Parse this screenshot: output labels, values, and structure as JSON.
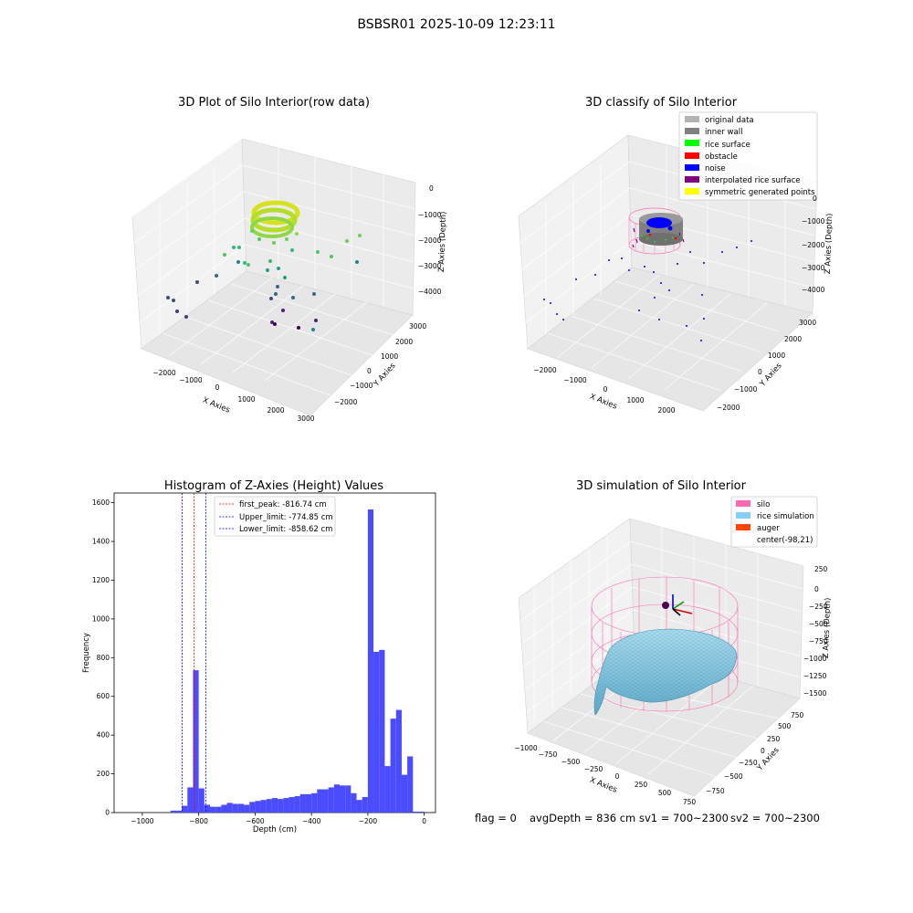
{
  "figure": {
    "suptitle": "BSBSR01 2025-10-09 12:23:11",
    "footer": {
      "flag": "flag = 0",
      "avg_depth": "avgDepth = 836 cm",
      "sv1": "sv1 = 700~2300",
      "sv2": "sv2 = 700~2300"
    }
  },
  "colors": {
    "histogram_bar": "#4b4bff",
    "first_peak_line": "#ff0000",
    "limit_lines": "#0000ff",
    "silo_wire": "#ff69b4",
    "rice_simulation": "#87cefa",
    "auger": "#ff4500",
    "original_data": "#b3b3b3",
    "inner_wall": "#808080",
    "rice_surface": "#00ff00",
    "obstacle": "#ff0000",
    "noise": "#0000ff",
    "interpolated_rice_surface": "#800080",
    "symmetric_generated_points": "#ffff00"
  },
  "chart_data": [
    {
      "type": "scatter",
      "title": "3D Plot of Silo Interior(row data)",
      "xlabel": "X Axies",
      "ylabel": "Y Axies",
      "zlabel": "Z Axies (Depth)",
      "x_ticks": [
        "−2000",
        "−1000",
        "0",
        "1000",
        "2000",
        "3000"
      ],
      "y_ticks": [
        "−2000",
        "−1000",
        "0",
        "1000",
        "2000",
        "3000"
      ],
      "z_ticks": [
        "0",
        "−1000",
        "−2000",
        "−3000",
        "−4000"
      ],
      "xlim": [
        -2500,
        3000
      ],
      "ylim": [
        -2500,
        3500
      ],
      "zlim": [
        -4500,
        0
      ],
      "colormap": "viridis",
      "grid": true
    },
    {
      "type": "scatter",
      "title": "3D classify of Silo Interior",
      "xlabel": "X Axies",
      "ylabel": "Y Axies",
      "zlabel": "Z Axies (Depth)",
      "x_ticks": [
        "−2000",
        "−1000",
        "0",
        "1000",
        "2000"
      ],
      "y_ticks": [
        "−2000",
        "−1000",
        "0",
        "1000",
        "2000",
        "3000"
      ],
      "z_ticks": [
        "0",
        "−1000",
        "−2000",
        "−3000",
        "−4000"
      ],
      "legend": [
        {
          "label": "original data",
          "color": "#b3b3b3"
        },
        {
          "label": "inner wall",
          "color": "#808080"
        },
        {
          "label": "rice surface",
          "color": "#00ff00"
        },
        {
          "label": "obstacle",
          "color": "#ff0000"
        },
        {
          "label": "noise",
          "color": "#0000ff"
        },
        {
          "label": "interpolated rice surface",
          "color": "#800080"
        },
        {
          "label": "symmetric generated points",
          "color": "#ffff00"
        }
      ],
      "legend_position": "top-right",
      "grid": true
    },
    {
      "type": "bar",
      "title": "Histogram of Z-Axies (Height) Values",
      "xlabel": "Depth (cm)",
      "ylabel": "Frequency",
      "xlim": [
        -1100,
        40
      ],
      "ylim": [
        0,
        1650
      ],
      "x_ticks": [
        -1000,
        -800,
        -600,
        -400,
        -200,
        0
      ],
      "x_tick_labels": [
        "−1000",
        "−800",
        "−600",
        "−400",
        "−200",
        "0"
      ],
      "y_ticks": [
        0,
        200,
        400,
        600,
        800,
        1000,
        1200,
        1400,
        1600
      ],
      "bin_width": 20,
      "bin_starts": [
        -900,
        -880,
        -860,
        -840,
        -820,
        -800,
        -780,
        -760,
        -740,
        -720,
        -700,
        -680,
        -660,
        -640,
        -620,
        -600,
        -580,
        -560,
        -540,
        -520,
        -500,
        -480,
        -460,
        -440,
        -420,
        -400,
        -380,
        -360,
        -340,
        -320,
        -300,
        -280,
        -260,
        -240,
        -220,
        -200,
        -180,
        -160,
        -140,
        -120,
        -100,
        -80,
        -60,
        -40,
        -20
      ],
      "values": [
        10,
        10,
        35,
        130,
        735,
        125,
        40,
        30,
        30,
        40,
        50,
        45,
        45,
        40,
        55,
        60,
        65,
        70,
        75,
        70,
        75,
        80,
        85,
        95,
        95,
        100,
        120,
        120,
        130,
        145,
        140,
        140,
        100,
        65,
        80,
        1565,
        830,
        840,
        240,
        485,
        530,
        195,
        290,
        5,
        5
      ],
      "vlines": [
        {
          "label": "first_peak: -816.74 cm",
          "x": -816.74,
          "color": "#ff0000"
        },
        {
          "label": "Upper_limit: -774.85 cm",
          "x": -774.85,
          "color": "#0000ff"
        },
        {
          "label": "Lower_limit: -858.62 cm",
          "x": -858.62,
          "color": "#0000ff"
        }
      ],
      "legend_position": "top-center"
    },
    {
      "type": "surface",
      "title": "3D simulation of Silo Interior",
      "xlabel": "X Axies",
      "ylabel": "Y Axies",
      "zlabel": "Z Axies (Depth)",
      "x_ticks": [
        "−1000",
        "−750",
        "−500",
        "−250",
        "0",
        "250",
        "500",
        "750"
      ],
      "y_ticks": [
        "−750",
        "−500",
        "−250",
        "0",
        "250",
        "500",
        "750"
      ],
      "z_ticks": [
        "250",
        "0",
        "−250",
        "−500",
        "−750",
        "−1000",
        "−1250",
        "−1500"
      ],
      "legend": [
        {
          "label": "silo",
          "color": "#ff69b4"
        },
        {
          "label": "rice simulation",
          "color": "#87cefa"
        },
        {
          "label": "auger",
          "color": "#ff4500"
        },
        {
          "label": "center(-98,21)",
          "color": ""
        }
      ],
      "legend_position": "top-right",
      "grid": true
    }
  ]
}
